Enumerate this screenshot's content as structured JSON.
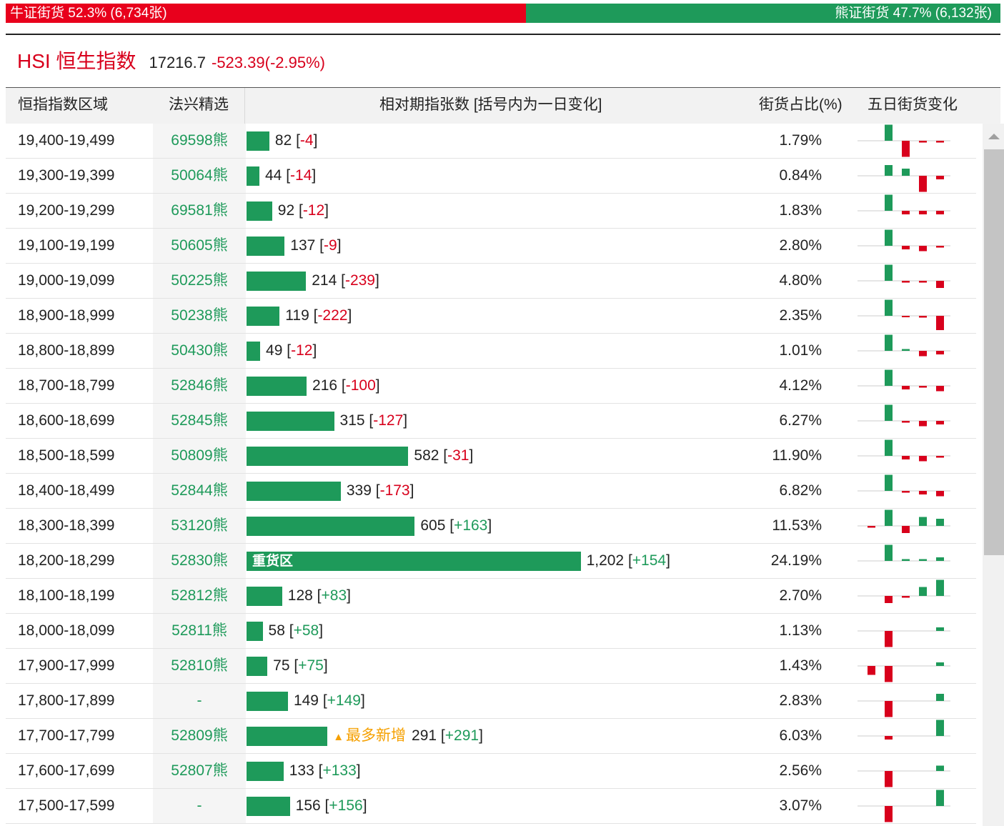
{
  "summary": {
    "bull_label": "牛证街货 52.3% (6,734张)",
    "bull_share": 0.523,
    "bear_label": "熊证街货 47.7% (6,132张)",
    "bear_share": 0.477
  },
  "index": {
    "name": "HSI 恒生指数",
    "price": "17216.7",
    "change": "-523.39(-2.95%)"
  },
  "headers": {
    "range": "恒指指数区域",
    "pick": "法兴精选",
    "relative": "相对期指张数 [括号内为一日变化]",
    "pct": "街货占比(%)",
    "five_day": "五日街货变化"
  },
  "colors": {
    "up": "#1e9a5a",
    "down": "#d8001c",
    "bull": "#e8001c",
    "bear": "#1e9a5a",
    "flag": "#f5a000"
  },
  "rows": [
    {
      "range": "19,400-19,499",
      "code": "69598熊",
      "value": 82,
      "value_text": "82",
      "delta": "-4",
      "pct": "1.79%",
      "spark": [
        0,
        9,
        -9,
        -1,
        -1
      ]
    },
    {
      "range": "19,300-19,399",
      "code": "50064熊",
      "value": 44,
      "value_text": "44",
      "delta": "-14",
      "pct": "0.84%",
      "spark": [
        0,
        6,
        4,
        -9,
        -2
      ]
    },
    {
      "range": "19,200-19,299",
      "code": "69581熊",
      "value": 92,
      "value_text": "92",
      "delta": "-12",
      "pct": "1.83%",
      "spark": [
        0,
        9,
        -2,
        -2,
        -2
      ]
    },
    {
      "range": "19,100-19,199",
      "code": "50605熊",
      "value": 137,
      "value_text": "137",
      "delta": "-9",
      "pct": "2.80%",
      "spark": [
        0,
        9,
        -2,
        -3,
        -1
      ]
    },
    {
      "range": "19,000-19,099",
      "code": "50225熊",
      "value": 214,
      "value_text": "214",
      "delta": "-239",
      "pct": "4.80%",
      "spark": [
        0,
        9,
        -1,
        -1,
        -4
      ]
    },
    {
      "range": "18,900-18,999",
      "code": "50238熊",
      "value": 119,
      "value_text": "119",
      "delta": "-222",
      "pct": "2.35%",
      "spark": [
        0,
        9,
        -0.5,
        -1,
        -8
      ]
    },
    {
      "range": "18,800-18,899",
      "code": "50430熊",
      "value": 49,
      "value_text": "49",
      "delta": "-12",
      "pct": "1.01%",
      "spark": [
        0,
        9,
        1,
        -3,
        -2
      ]
    },
    {
      "range": "18,700-18,799",
      "code": "52846熊",
      "value": 216,
      "value_text": "216",
      "delta": "-100",
      "pct": "4.12%",
      "spark": [
        0,
        9,
        -2,
        -1,
        -3
      ]
    },
    {
      "range": "18,600-18,699",
      "code": "52845熊",
      "value": 315,
      "value_text": "315",
      "delta": "-127",
      "pct": "6.27%",
      "spark": [
        0,
        9,
        -1,
        -3,
        -2
      ]
    },
    {
      "range": "18,500-18,599",
      "code": "50809熊",
      "value": 582,
      "value_text": "582",
      "delta": "-31",
      "pct": "11.90%",
      "spark": [
        0,
        9,
        -2,
        -3,
        -1
      ]
    },
    {
      "range": "18,400-18,499",
      "code": "52844熊",
      "value": 339,
      "value_text": "339",
      "delta": "-173",
      "pct": "6.82%",
      "spark": [
        0,
        9,
        -1,
        -2,
        -3
      ]
    },
    {
      "range": "18,300-18,399",
      "code": "53120熊",
      "value": 605,
      "value_text": "605",
      "delta": "+163",
      "pct": "11.53%",
      "spark": [
        -1,
        9,
        -4,
        5,
        4
      ]
    },
    {
      "range": "18,200-18,299",
      "code": "52830熊",
      "value": 1202,
      "value_text": "1,202",
      "delta": "+154",
      "pct": "24.19%",
      "spark": [
        0,
        9,
        1,
        1,
        2
      ],
      "bar_label": "重货区"
    },
    {
      "range": "18,100-18,199",
      "code": "52812熊",
      "value": 128,
      "value_text": "128",
      "delta": "+83",
      "pct": "2.70%",
      "spark": [
        0,
        -4,
        -1,
        5,
        9
      ]
    },
    {
      "range": "18,000-18,099",
      "code": "52811熊",
      "value": 58,
      "value_text": "58",
      "delta": "+58",
      "pct": "1.13%",
      "spark": [
        0,
        -9,
        0,
        0,
        2
      ]
    },
    {
      "range": "17,900-17,999",
      "code": "52810熊",
      "value": 75,
      "value_text": "75",
      "delta": "+75",
      "pct": "1.43%",
      "spark": [
        -5,
        -9,
        0,
        0,
        2
      ]
    },
    {
      "range": "17,800-17,899",
      "code": "-",
      "value": 149,
      "value_text": "149",
      "delta": "+149",
      "pct": "2.83%",
      "spark": [
        0,
        -9,
        0,
        0,
        4
      ]
    },
    {
      "range": "17,700-17,799",
      "code": "52809熊",
      "value": 291,
      "value_text": "291",
      "delta": "+291",
      "pct": "6.03%",
      "spark": [
        0,
        -2,
        0,
        0,
        9
      ],
      "flag": "最多新增",
      "flag_icon": "▲"
    },
    {
      "range": "17,600-17,699",
      "code": "52807熊",
      "value": 133,
      "value_text": "133",
      "delta": "+133",
      "pct": "2.56%",
      "spark": [
        0,
        -9,
        0,
        0,
        3
      ]
    },
    {
      "range": "17,500-17,599",
      "code": "-",
      "value": 156,
      "value_text": "156",
      "delta": "+156",
      "pct": "3.07%",
      "spark": [
        0,
        -9,
        0,
        0,
        9
      ]
    }
  ]
}
